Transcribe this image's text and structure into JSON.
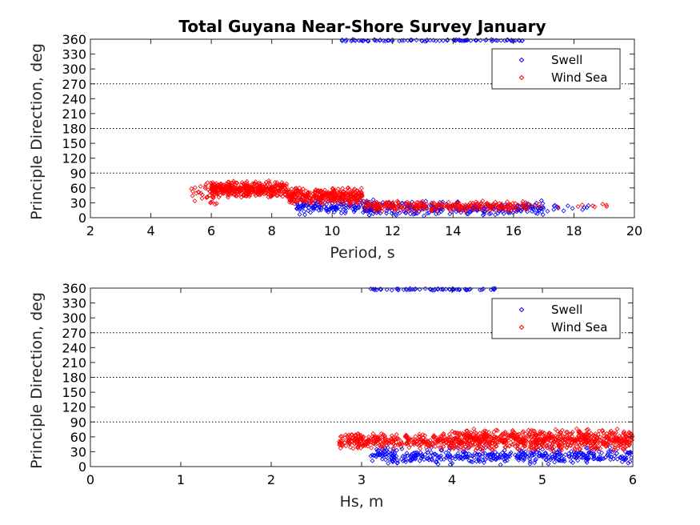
{
  "chart_data": [
    {
      "type": "scatter",
      "title": "Total Guyana Near-Shore Survey January",
      "xlabel": "Period, s",
      "ylabel": "Principle Direction, deg",
      "xlim": [
        2,
        20
      ],
      "ylim": [
        0,
        360
      ],
      "xticks": [
        "2",
        "4",
        "6",
        "8",
        "10",
        "12",
        "14",
        "16",
        "18",
        "20"
      ],
      "yticks": [
        "0",
        "30",
        "60",
        "90",
        "120",
        "150",
        "180",
        "210",
        "240",
        "270",
        "300",
        "330",
        "360"
      ],
      "reference_lines_y": [
        90,
        180,
        270
      ],
      "legend": "top-right",
      "series": [
        {
          "name": "Swell",
          "color": "#0000ff",
          "marker": "diamond",
          "clusters": [
            {
              "x": [
                10.3,
                16.3
              ],
              "y": [
                355,
                360
              ],
              "n": 90
            },
            {
              "x": [
                8.8,
                11.5
              ],
              "y": [
                5,
                40
              ],
              "n": 150
            },
            {
              "x": [
                11.0,
                17.0
              ],
              "y": [
                3,
                35
              ],
              "n": 260
            },
            {
              "x": [
                16.0,
                19.0
              ],
              "y": [
                12,
                30
              ],
              "n": 25
            }
          ]
        },
        {
          "name": "Wind Sea",
          "color": "#ff0000",
          "marker": "diamond",
          "clusters": [
            {
              "x": [
                5.3,
                6.2
              ],
              "y": [
                25,
                75
              ],
              "n": 35
            },
            {
              "x": [
                6.0,
                8.5
              ],
              "y": [
                40,
                75
              ],
              "n": 380
            },
            {
              "x": [
                8.5,
                11.0
              ],
              "y": [
                25,
                62
              ],
              "n": 320
            },
            {
              "x": [
                11.0,
                16.5
              ],
              "y": [
                12,
                35
              ],
              "n": 260
            },
            {
              "x": [
                16.5,
                19.1
              ],
              "y": [
                18,
                30
              ],
              "n": 12
            }
          ]
        }
      ]
    },
    {
      "type": "scatter",
      "title": "",
      "xlabel": "Hs, m",
      "ylabel": "Principle Direction, deg",
      "xlim": [
        0,
        6
      ],
      "ylim": [
        0,
        360
      ],
      "xticks": [
        "0",
        "1",
        "2",
        "3",
        "4",
        "5",
        "6"
      ],
      "yticks": [
        "0",
        "30",
        "60",
        "90",
        "120",
        "150",
        "180",
        "210",
        "240",
        "270",
        "300",
        "330",
        "360"
      ],
      "reference_lines_y": [
        90,
        180,
        270
      ],
      "legend": "top-right",
      "series": [
        {
          "name": "Swell",
          "color": "#0000ff",
          "marker": "diamond",
          "clusters": [
            {
              "x": [
                3.1,
                4.5
              ],
              "y": [
                355,
                360
              ],
              "n": 60
            },
            {
              "x": [
                3.1,
                6.0
              ],
              "y": [
                3,
                40
              ],
              "n": 420
            }
          ]
        },
        {
          "name": "Wind Sea",
          "color": "#ff0000",
          "marker": "diamond",
          "clusters": [
            {
              "x": [
                2.75,
                4.0
              ],
              "y": [
                35,
                68
              ],
              "n": 300
            },
            {
              "x": [
                4.0,
                6.0
              ],
              "y": [
                30,
                78
              ],
              "n": 700
            }
          ]
        }
      ]
    }
  ]
}
